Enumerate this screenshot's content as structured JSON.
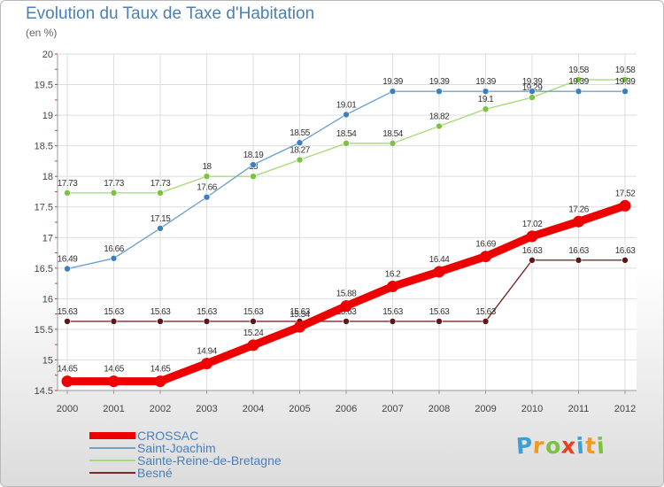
{
  "header": {
    "title": "Evolution du Taux de Taxe d'Habitation",
    "subtitle": "(en %)"
  },
  "brand": {
    "letters": [
      "P",
      "r",
      "o",
      "x",
      "i",
      "t",
      "i"
    ],
    "colors": [
      "#3aa0d8",
      "#f39a1e",
      "#7cc242",
      "#e8401c",
      "#3aa0d8",
      "#f39a1e",
      "#7cc242"
    ]
  },
  "chart_data": {
    "type": "line",
    "x": [
      "2000",
      "2001",
      "2002",
      "2003",
      "2004",
      "2005",
      "2006",
      "2007",
      "2008",
      "2009",
      "2010",
      "2011",
      "2012"
    ],
    "ylim": [
      14.5,
      20
    ],
    "yticks": [
      "14.5",
      "15",
      "15.5",
      "16",
      "16.5",
      "17",
      "17.5",
      "18",
      "18.5",
      "19",
      "19.5",
      "20"
    ],
    "grid": true,
    "legend_position": "bottom-left",
    "series": [
      {
        "name": "CROSSAC",
        "color": "#ee0000",
        "bold": true,
        "values": [
          14.65,
          14.65,
          14.65,
          14.94,
          15.24,
          15.54,
          15.88,
          16.2,
          16.44,
          16.69,
          17.02,
          17.26,
          17.52
        ],
        "labels": [
          "14.65",
          "14.65",
          "14.65",
          "14.94",
          "15.24",
          "15.54",
          "15.88",
          "16.2",
          "16.44",
          "16.69",
          "17.02",
          "17.26",
          "17.52"
        ]
      },
      {
        "name": "Saint-Joachim",
        "color": "#6fa3cf",
        "marker": "#3b7fc0",
        "values": [
          16.49,
          16.66,
          17.15,
          17.66,
          18.19,
          18.55,
          19.01,
          19.39,
          19.39,
          19.39,
          19.39,
          19.39,
          19.39
        ],
        "labels": [
          "16.49",
          "16.66",
          "17.15",
          "17.66",
          "18.19",
          "18.55",
          "19.01",
          "19.39",
          "19.39",
          "19.39",
          "19.39",
          "19.39",
          "19.39"
        ]
      },
      {
        "name": "Sainte-Reine-de-Bretagne",
        "color": "#a8dc7a",
        "marker": "#7cc242",
        "values": [
          17.73,
          17.73,
          17.73,
          18,
          18,
          18.27,
          18.54,
          18.54,
          18.82,
          19.1,
          19.29,
          19.58,
          19.58
        ],
        "labels": [
          "17.73",
          "17.73",
          "17.73",
          "18",
          "18",
          "18.27",
          "18.54",
          "18.54",
          "18.82",
          "19.1",
          "19.29",
          "19.58",
          "19.58"
        ]
      },
      {
        "name": "Besné",
        "color": "#7a2c2c",
        "marker": "#5c1818",
        "values": [
          15.63,
          15.63,
          15.63,
          15.63,
          15.63,
          15.63,
          15.63,
          15.63,
          15.63,
          15.63,
          16.63,
          16.63,
          16.63
        ],
        "labels": [
          "15.63",
          "15.63",
          "15.63",
          "15.63",
          "15.63",
          "15.63",
          "15.63",
          "15.63",
          "15.63",
          "15.63",
          "16.63",
          "16.63",
          "16.63"
        ]
      }
    ]
  }
}
